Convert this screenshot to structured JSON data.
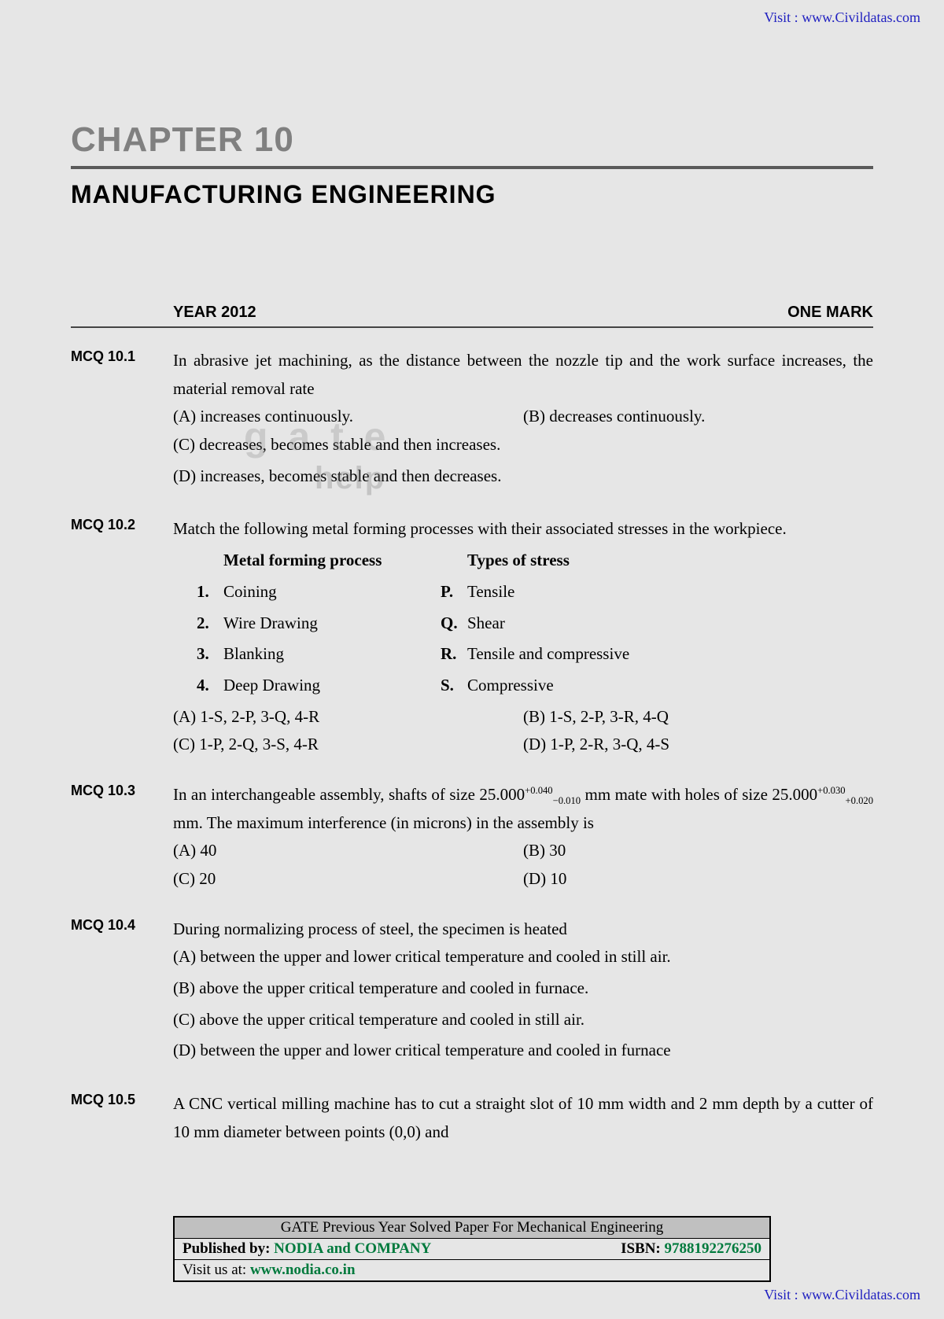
{
  "links": {
    "visit_label": "Visit :",
    "site": "www.Civildatas.com"
  },
  "header": {
    "chapter": "CHAPTER 10",
    "title": "MANUFACTURING ENGINEERING"
  },
  "section": {
    "year": "YEAR 2012",
    "mark": "ONE MARK"
  },
  "watermark": {
    "l1": "g a t e",
    "l2": "help"
  },
  "q1": {
    "label": "MCQ 10.1",
    "text": "In abrasive jet machining, as the distance between the nozzle tip and the work surface increases, the material removal rate",
    "a": "(A) increases continuously.",
    "b": "(B)    decreases continuously.",
    "c": "(C) decreases, becomes stable and then increases.",
    "d": "(D) increases, becomes stable and then decreases."
  },
  "q2": {
    "label": "MCQ 10.2",
    "text": "Match the following metal forming processes with their associated stresses in the workpiece.",
    "hL": "Metal forming process",
    "hR": "Types of stress",
    "L1n": "1.",
    "L1": "Coining",
    "R1n": "P.",
    "R1": "Tensile",
    "L2n": "2.",
    "L2": "Wire Drawing",
    "R2n": "Q.",
    "R2": "Shear",
    "L3n": "3.",
    "L3": "Blanking",
    "R3n": "R.",
    "R3": "Tensile and compressive",
    "L4n": "4.",
    "L4": "Deep Drawing",
    "R4n": "S.",
    "R4": "Compressive",
    "a": "(A) 1-S, 2-P, 3-Q, 4-R",
    "b": "(B) 1-S, 2-P, 3-R, 4-Q",
    "c": "(C) 1-P, 2-Q, 3-S, 4-R",
    "d": "(D) 1-P, 2-R, 3-Q, 4-S"
  },
  "q3": {
    "label": "MCQ 10.3",
    "t1": "In an interchangeable assembly, shafts of size 25.000",
    "tol1u": "+0.040",
    "tol1l": "−0.010",
    "t2": " mm mate with holes of size 25.000",
    "tol2u": "+0.030",
    "tol2l": "+0.020",
    "t3": " mm. The maximum interference (in microns) in the assembly is",
    "a": "(A) 40",
    "b": "(B) 30",
    "c": "(C) 20",
    "d": "(D) 10"
  },
  "q4": {
    "label": "MCQ 10.4",
    "text": "During normalizing process of steel, the specimen is heated",
    "a": "(A) between the upper and lower critical temperature and cooled in still air.",
    "b": "(B) above the upper critical temperature and cooled in furnace.",
    "c": "(C) above the upper critical temperature and cooled in still air.",
    "d": "(D) between the upper and lower critical temperature and cooled in furnace"
  },
  "q5": {
    "label": "MCQ 10.5",
    "text": "A CNC vertical milling machine has to cut a straight slot of 10 mm width and 2 mm depth by a cutter of 10 mm diameter between points (0,0) and"
  },
  "footer": {
    "title": "GATE Previous Year Solved Paper For Mechanical Engineering",
    "pub_label": "Published by:",
    "publisher": "NODIA and COMPANY",
    "isbn_label": "ISBN:",
    "isbn": "9788192276250",
    "visit_label": "Visit us at:",
    "url": "www.nodia.co.in"
  }
}
